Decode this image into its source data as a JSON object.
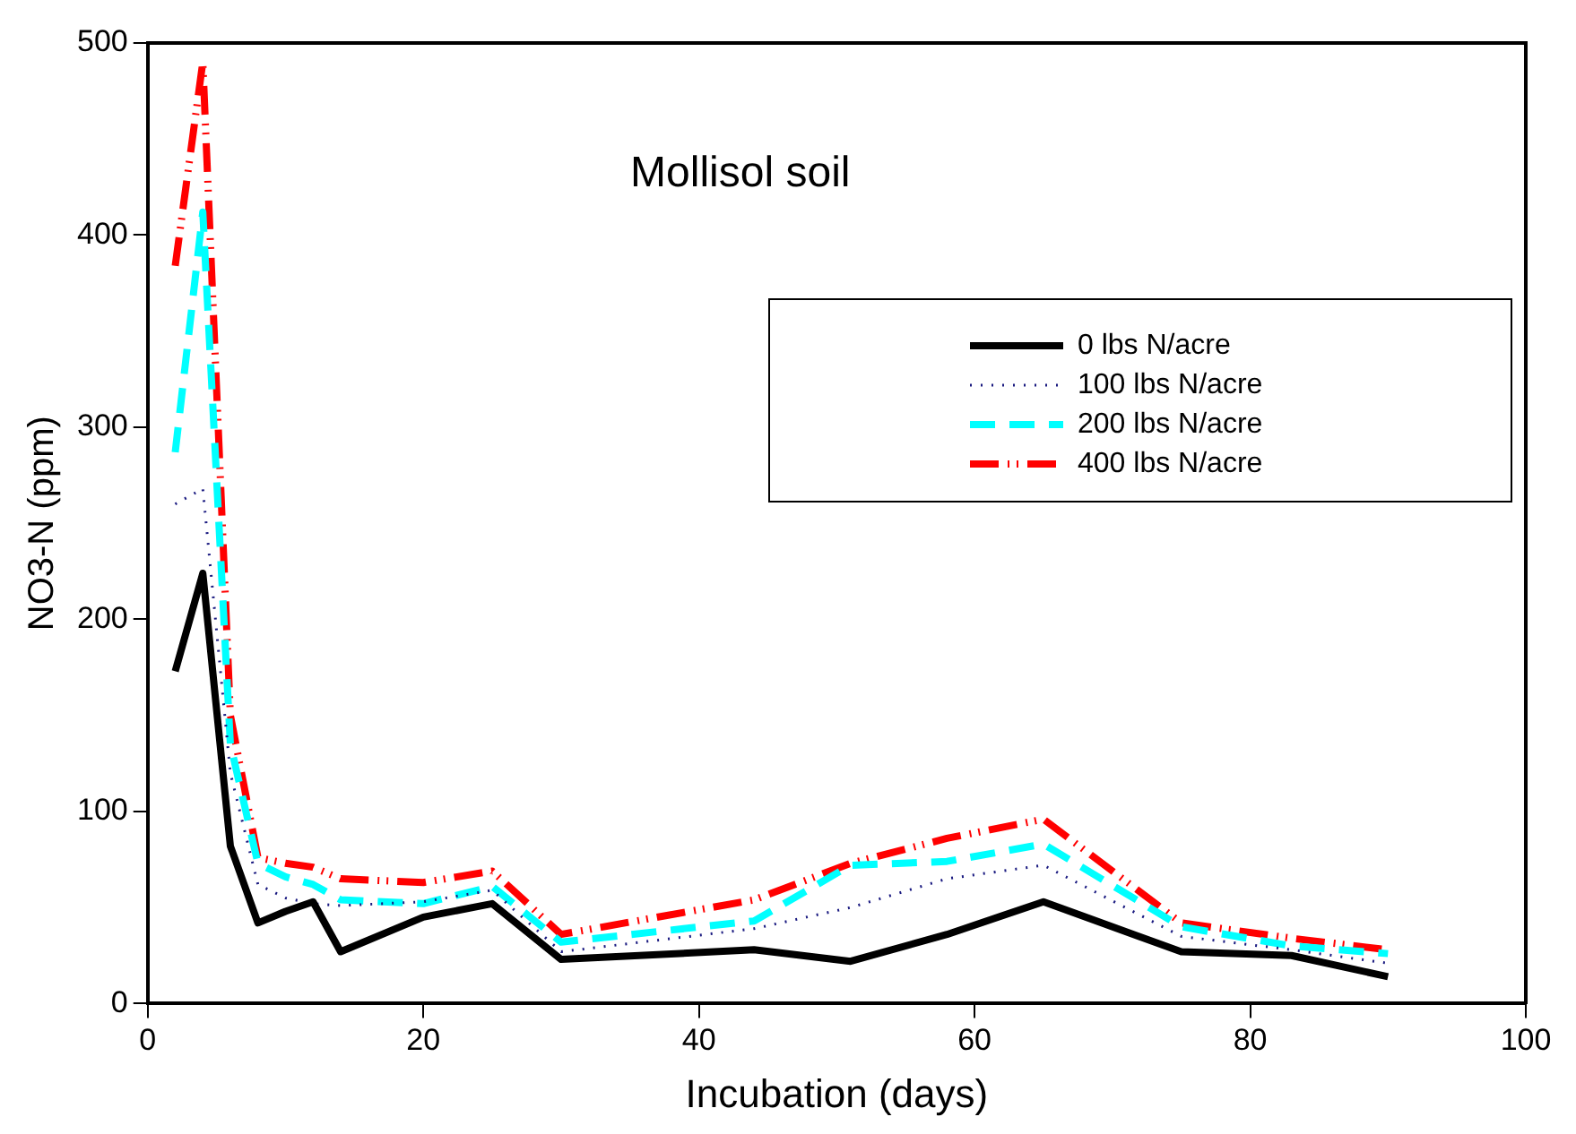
{
  "chart_data": {
    "type": "line",
    "xlabel": "Incubation (days)",
    "ylabel": "NO3-N (ppm)",
    "annotations": [
      "Mollisol soil"
    ],
    "x": [
      2,
      4,
      6,
      8,
      10,
      12,
      14,
      20,
      25,
      30,
      44,
      51,
      58,
      65,
      75,
      83,
      90
    ],
    "xlim": [
      0,
      100
    ],
    "xticks": [
      0,
      20,
      40,
      60,
      80,
      100
    ],
    "ylim": [
      0,
      500
    ],
    "yticks": [
      0,
      100,
      200,
      300,
      400,
      500
    ],
    "grid": false,
    "legend": "top right",
    "marker": "none",
    "series": [
      {
        "name": "0 lbs N/acre",
        "color": "#000000",
        "line_style": "solid",
        "values": [
          173,
          224,
          82,
          42,
          48,
          53,
          27,
          45,
          52,
          23,
          28,
          22,
          36,
          53,
          27,
          25,
          14
        ]
      },
      {
        "name": "100 lbs N/acre",
        "color": "#1a1a80",
        "line_style": "dotted",
        "values": [
          260,
          268,
          120,
          62,
          55,
          52,
          51,
          53,
          59,
          27,
          39,
          50,
          65,
          72,
          35,
          28,
          21
        ]
      },
      {
        "name": "200 lbs N/acre",
        "color": "#00ffff",
        "line_style": "dashed",
        "values": [
          287,
          412,
          135,
          73,
          66,
          62,
          54,
          52,
          61,
          32,
          43,
          72,
          74,
          83,
          40,
          30,
          26
        ]
      },
      {
        "name": "400 lbs N/acre",
        "color": "#ff0000",
        "line_style": "dashdotdot",
        "values": [
          384,
          490,
          150,
          76,
          73,
          71,
          65,
          63,
          69,
          36,
          54,
          73,
          86,
          96,
          42,
          34,
          28
        ]
      }
    ]
  }
}
